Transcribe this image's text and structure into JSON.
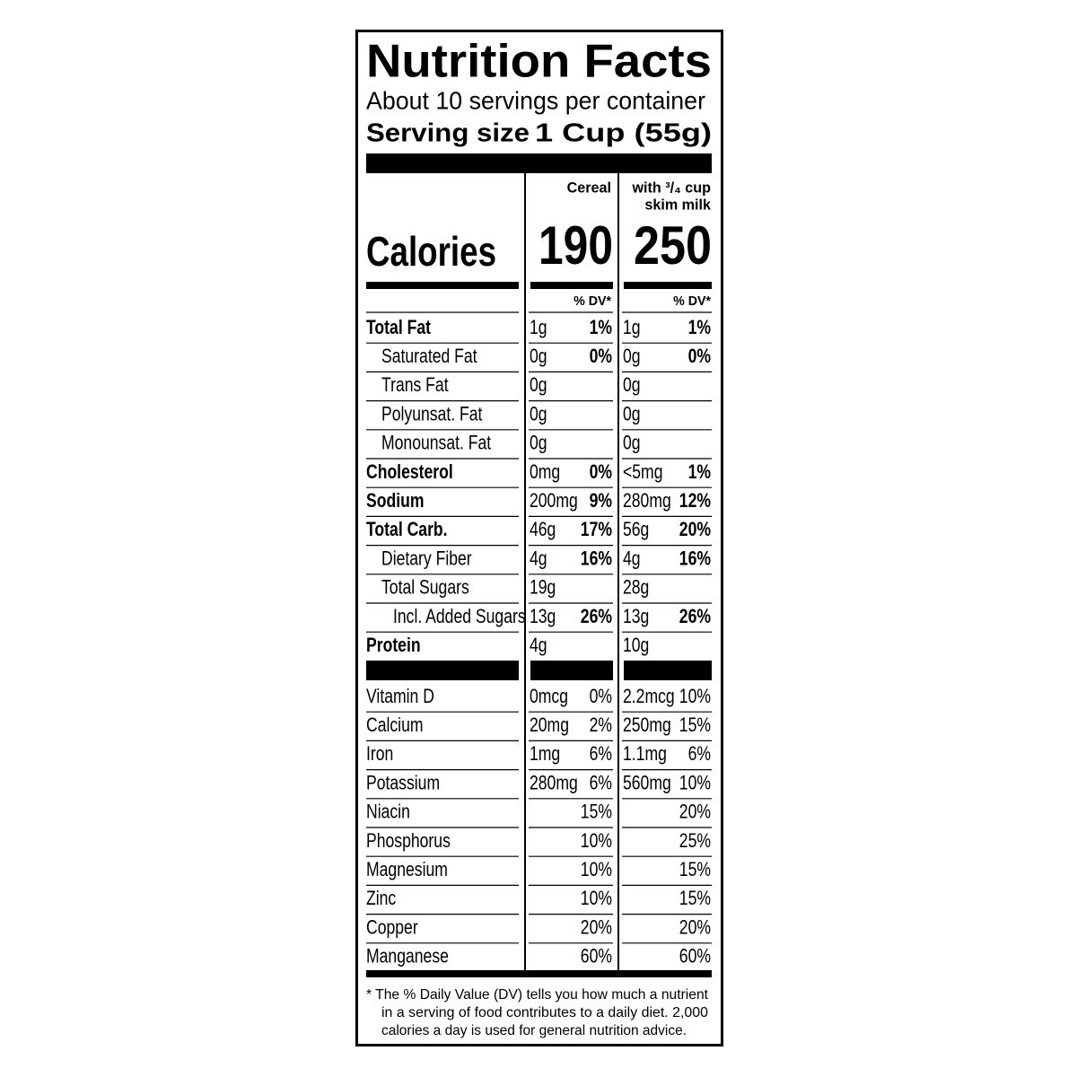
{
  "header": {
    "title": "Nutrition Facts",
    "servings": "About 10 servings per container",
    "serving_size_label": "Serving size",
    "serving_size_value": "1 Cup (55g)"
  },
  "columns": {
    "cereal": "Cereal",
    "milk_line1": "with ³/₄ cup",
    "milk_line2": "skim milk",
    "dv": "% DV*"
  },
  "calories": {
    "label": "Calories",
    "cereal": 190,
    "milk": 250
  },
  "nutrients": [
    {
      "name": "Total Fat",
      "cereal_amount": "1g",
      "cereal_dv": "1%",
      "milk_amount": "1g",
      "milk_dv": "1%",
      "sub": [
        {
          "name": "Saturated Fat",
          "cereal_amount": "0g",
          "cereal_dv": "0%",
          "milk_amount": "0g",
          "milk_dv": "0%"
        },
        {
          "name": "Trans Fat",
          "cereal_amount": "0g",
          "milk_amount": "0g"
        },
        {
          "name": "Polyunsat. Fat",
          "cereal_amount": "0g",
          "milk_amount": "0g"
        },
        {
          "name": "Monounsat. Fat",
          "cereal_amount": "0g",
          "milk_amount": "0g"
        }
      ]
    },
    {
      "name": "Cholesterol",
      "cereal_amount": "0mg",
      "cereal_dv": "0%",
      "milk_amount": "<5mg",
      "milk_dv": "1%"
    },
    {
      "name": "Sodium",
      "cereal_amount": "200mg",
      "cereal_dv": "9%",
      "milk_amount": "280mg",
      "milk_dv": "12%"
    },
    {
      "name": "Total Carb.",
      "cereal_amount": "46g",
      "cereal_dv": "17%",
      "milk_amount": "56g",
      "milk_dv": "20%",
      "sub": [
        {
          "name": "Dietary Fiber",
          "cereal_amount": "4g",
          "cereal_dv": "16%",
          "milk_amount": "4g",
          "milk_dv": "16%"
        },
        {
          "name": "Total Sugars",
          "cereal_amount": "19g",
          "milk_amount": "28g",
          "sub": [
            {
              "name": "Incl. Added Sugars",
              "cereal_amount": "13g",
              "cereal_dv": "26%",
              "milk_amount": "13g",
              "milk_dv": "26%"
            }
          ]
        }
      ]
    },
    {
      "name": "Protein",
      "cereal_amount": "4g",
      "milk_amount": "10g"
    }
  ],
  "vitamins": [
    {
      "name": "Vitamin D",
      "cereal_amount": "0mcg",
      "cereal_dv": "0%",
      "milk_amount": "2.2mcg",
      "milk_dv": "10%"
    },
    {
      "name": "Calcium",
      "cereal_amount": "20mg",
      "cereal_dv": "2%",
      "milk_amount": "250mg",
      "milk_dv": "15%"
    },
    {
      "name": "Iron",
      "cereal_amount": "1mg",
      "cereal_dv": "6%",
      "milk_amount": "1.1mg",
      "milk_dv": "6%"
    },
    {
      "name": "Potassium",
      "cereal_amount": "280mg",
      "cereal_dv": "6%",
      "milk_amount": "560mg",
      "milk_dv": "10%"
    },
    {
      "name": "Niacin",
      "cereal_dv": "15%",
      "milk_dv": "20%"
    },
    {
      "name": "Phosphorus",
      "cereal_dv": "10%",
      "milk_dv": "25%"
    },
    {
      "name": "Magnesium",
      "cereal_dv": "10%",
      "milk_dv": "15%"
    },
    {
      "name": "Zinc",
      "cereal_dv": "10%",
      "milk_dv": "15%"
    },
    {
      "name": "Copper",
      "cereal_dv": "20%",
      "milk_dv": "20%"
    },
    {
      "name": "Manganese",
      "cereal_dv": "60%",
      "milk_dv": "60%"
    }
  ],
  "footnote": [
    "* The % Daily Value (DV) tells you how much a nutrient",
    "in a serving of food contributes to a daily diet. 2,000",
    "calories a day is used for general nutrition advice."
  ]
}
